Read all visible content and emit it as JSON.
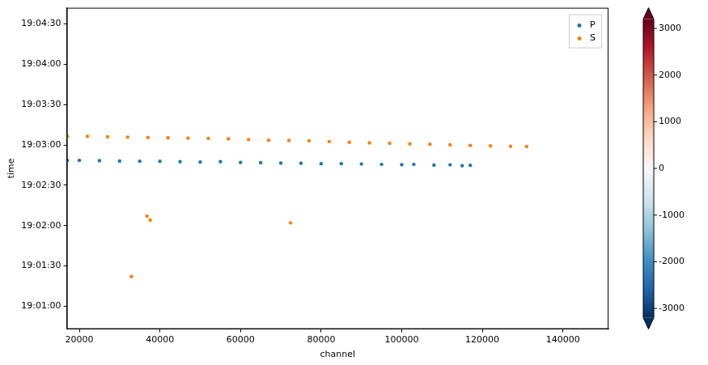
{
  "chart_data": {
    "type": "scatter",
    "x_label": "channel",
    "y_label": "time",
    "xlim": [
      16900,
      151300
    ],
    "xticks": [
      20000,
      40000,
      60000,
      80000,
      100000,
      120000,
      140000
    ],
    "ylim": [
      68443,
      68682
    ],
    "yticks": [
      {
        "value": 68460,
        "label": "19:01:00"
      },
      {
        "value": 68490,
        "label": "19:01:30"
      },
      {
        "value": 68520,
        "label": "19:02:00"
      },
      {
        "value": 68550,
        "label": "19:02:30"
      },
      {
        "value": 68580,
        "label": "19:03:00"
      },
      {
        "value": 68610,
        "label": "19:03:30"
      },
      {
        "value": 68640,
        "label": "19:04:00"
      },
      {
        "value": 68670,
        "label": "19:04:30"
      }
    ],
    "grid": false,
    "legend": "upper right",
    "marker": "circle",
    "series": [
      {
        "name": "P",
        "color": "#1f77b4",
        "x": [
          17000,
          20000,
          25000,
          30000,
          35000,
          40000,
          45000,
          50000,
          55000,
          60000,
          65000,
          70000,
          75000,
          80000,
          85000,
          90000,
          95000,
          100000,
          103000,
          108000,
          112000,
          115000,
          117000
        ],
        "values": [
          68568.5,
          68568.5,
          68568.3,
          68568.0,
          68567.8,
          68567.8,
          68567.5,
          68567.3,
          68567.5,
          68567.0,
          68566.8,
          68566.5,
          68566.3,
          68566.0,
          68566.0,
          68565.8,
          68565.5,
          68565.3,
          68565.5,
          68565.0,
          68565.2,
          68564.5,
          68564.8
        ]
      },
      {
        "name": "S",
        "color": "#ff7f0e",
        "x": [
          17000,
          22000,
          27000,
          32000,
          37000,
          42000,
          47000,
          52000,
          57000,
          62000,
          67000,
          72000,
          77000,
          82000,
          87000,
          92000,
          97000,
          102000,
          107000,
          112000,
          117000,
          122000,
          127000,
          131000,
          36800,
          37600,
          72400,
          32900
        ],
        "values": [
          68586.5,
          68586.3,
          68586.0,
          68585.8,
          68585.5,
          68585.3,
          68585.0,
          68584.8,
          68584.5,
          68584.0,
          68583.5,
          68583.3,
          68583.0,
          68582.5,
          68582.0,
          68581.5,
          68581.2,
          68580.8,
          68580.5,
          68580.0,
          68579.6,
          68579.3,
          68579.0,
          68578.8,
          68527.0,
          68524.0,
          68522.0,
          68482.0
        ]
      }
    ],
    "colorbar_lim": [
      -3200,
      3200
    ],
    "colorbar_ticks": [
      -3000,
      -2000,
      -1000,
      0,
      1000,
      2000,
      3000
    ]
  }
}
